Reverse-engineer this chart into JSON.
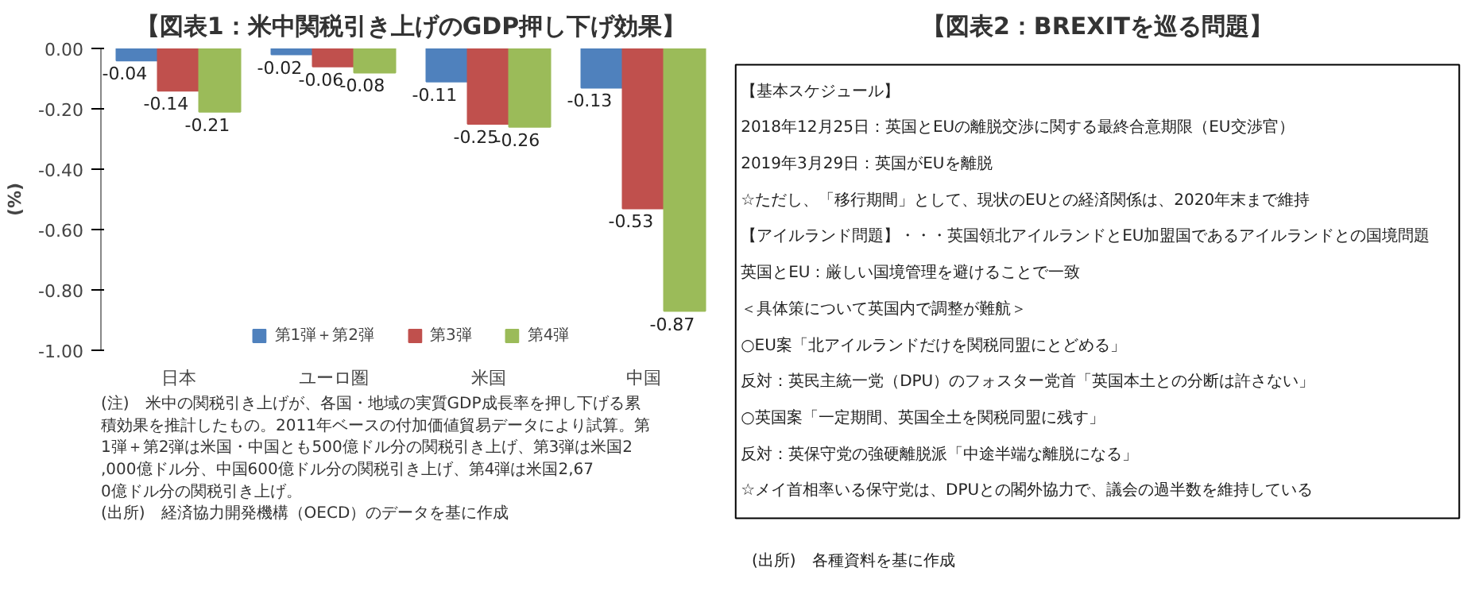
{
  "chart_data": [
    {
      "type": "bar",
      "title": "【図表1：米中関税引き上げのGDP押し下げ効果】",
      "ylabel": "(%)",
      "categories": [
        "日本",
        "ユーロ圏",
        "米国",
        "中国"
      ],
      "series": [
        {
          "name": "第1弾＋第2弾",
          "color": "#4f81bd",
          "values": [
            -0.04,
            -0.02,
            -0.11,
            -0.13
          ]
        },
        {
          "name": "第3弾",
          "color": "#c0504d",
          "values": [
            -0.14,
            -0.06,
            -0.25,
            -0.53
          ]
        },
        {
          "name": "第4弾",
          "color": "#9bbb59",
          "values": [
            -0.21,
            -0.08,
            -0.26,
            -0.87
          ]
        }
      ],
      "ylim": [
        -1.0,
        0.0
      ],
      "yticks": [
        {
          "value": 0.0,
          "label": "0.00"
        },
        {
          "value": -0.2,
          "label": "-0.20"
        },
        {
          "value": -0.4,
          "label": "-0.40"
        },
        {
          "value": -0.6,
          "label": "-0.60"
        },
        {
          "value": -0.8,
          "label": "-0.80"
        },
        {
          "value": -1.0,
          "label": "-1.00"
        }
      ],
      "data_labels": true,
      "legend": "bottom",
      "annotations": [
        "(注)　米中の関税引き上げが、各国・地域の実質GDP成長率を押し下げる累積効果を推計したもの。2011年ベースの付加価値貿易データにより試算。第1弾＋第2弾は米国・中国とも500億ドル分の関税引き上げ、第3弾は米国2,000億ドル分、中国600億ドル分の関税引き上げ、第4弾は米国2,670億ドル分の関税引き上げ。",
        "(出所)　経済協力開発機構（OECD）のデータを基に作成"
      ]
    },
    {
      "type": "other",
      "title": "【図表2：BREXITを巡る問題】",
      "annotations": [
        "【基本スケジュール】",
        "2018年12月25日：英国とEUの離脱交渉に関する最終合意期限（EU交渉官）",
        "2019年3月29日：英国がEUを離脱",
        "☆ただし、「移行期間」として、現状のEUとの経済関係は、2020年末まで維持",
        "【アイルランド問題】・・・英国領北アイルランドとEU加盟国であるアイルランドとの国境問題",
        "英国とEU：厳しい国境管理を避けることで一致",
        "＜具体策について英国内で調整が難航＞",
        "○EU案「北アイルランドだけを関税同盟にとどめる」",
        "反対：英民主統一党（DPU）のフォスター党首「英国本土との分断は許さない」",
        "○英国案「一定期間、英国全土を関税同盟に残す」",
        "反対：英保守党の強硬離脱派「中途半端な離脱になる」",
        "☆メイ首相率いる保守党は、DPUとの閣外協力で、議会の過半数を維持している",
        "(出所)　各種資料を基に作成"
      ]
    }
  ]
}
